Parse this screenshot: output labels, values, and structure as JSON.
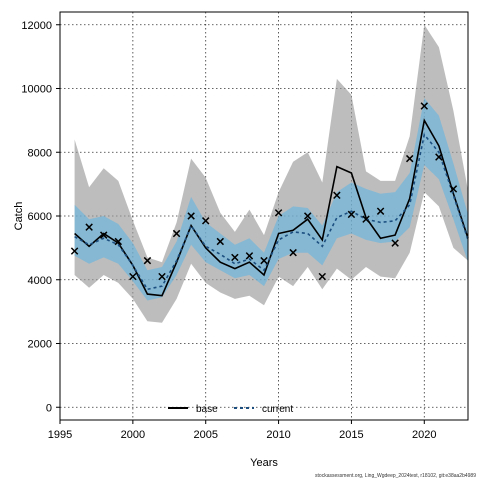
{
  "chart_data": {
    "type": "line",
    "title": "",
    "xlabel": "Years",
    "ylabel": "Catch",
    "xlim": [
      1995,
      2023
    ],
    "ylim": [
      -400,
      12400
    ],
    "x_ticks": [
      1995,
      2000,
      2005,
      2010,
      2015,
      2020
    ],
    "y_ticks": [
      0,
      2000,
      4000,
      6000,
      8000,
      10000,
      12000
    ],
    "grid": true,
    "legend_position": "bottom-center",
    "years": [
      1996,
      1997,
      1998,
      1999,
      2000,
      2001,
      2002,
      2003,
      2004,
      2005,
      2006,
      2007,
      2008,
      2009,
      2010,
      2011,
      2012,
      2013,
      2014,
      2015,
      2016,
      2017,
      2018,
      2019,
      2020,
      2021,
      2022,
      2023
    ],
    "series": [
      {
        "name": "base",
        "color": "#000000",
        "line_style": "solid",
        "band_color": "#999999",
        "values": [
          5450,
          5050,
          5450,
          5150,
          4450,
          3550,
          3500,
          4550,
          5700,
          5000,
          4550,
          4350,
          4550,
          4150,
          5450,
          5550,
          5900,
          5250,
          7550,
          7350,
          5950,
          5300,
          5400,
          6550,
          9000,
          8200,
          6700,
          5300
        ],
        "lower": [
          4150,
          3750,
          4150,
          3900,
          3400,
          2700,
          2650,
          3400,
          4500,
          3900,
          3600,
          3400,
          3500,
          3200,
          4100,
          3800,
          4400,
          3700,
          4350,
          4000,
          4400,
          4100,
          4050,
          4850,
          6750,
          6300,
          5000,
          4600
        ],
        "upper": [
          8400,
          6900,
          7500,
          7100,
          5850,
          4700,
          4550,
          5800,
          7800,
          7200,
          6100,
          5500,
          6200,
          5400,
          6750,
          7700,
          8000,
          7050,
          10300,
          9800,
          7400,
          7100,
          7100,
          8500,
          12000,
          11300,
          9300,
          6800
        ]
      },
      {
        "name": "current",
        "color": "#1c4f80",
        "line_style": "dashed",
        "band_color": "#5ab4e5",
        "values": [
          5350,
          5100,
          5300,
          5100,
          4450,
          3700,
          3800,
          4600,
          5700,
          5050,
          4800,
          4500,
          4650,
          4300,
          5250,
          5500,
          5450,
          5050,
          5950,
          6150,
          5900,
          5800,
          5850,
          6350,
          8550,
          8000,
          6650,
          5250
        ],
        "lower": [
          4750,
          4500,
          4700,
          4500,
          3950,
          3350,
          3450,
          4150,
          5100,
          4550,
          4300,
          4050,
          4150,
          3800,
          4650,
          4850,
          4850,
          4450,
          5300,
          5450,
          5250,
          5150,
          5200,
          5650,
          7600,
          7150,
          5900,
          4550
        ],
        "upper": [
          6350,
          5900,
          6000,
          5750,
          5150,
          4300,
          4400,
          5200,
          6600,
          5800,
          5450,
          5100,
          5300,
          4850,
          6000,
          6300,
          6250,
          5700,
          6750,
          7050,
          6850,
          6700,
          6750,
          7350,
          9700,
          9150,
          7650,
          6050
        ]
      }
    ],
    "observed": {
      "marker": "x",
      "x": [
        1996,
        1997,
        1998,
        1999,
        2000,
        2001,
        2002,
        2003,
        2004,
        2005,
        2006,
        2007,
        2008,
        2009,
        2010,
        2011,
        2012,
        2013,
        2014,
        2015,
        2016,
        2017,
        2018,
        2019,
        2020,
        2021,
        2022
      ],
      "y": [
        4900,
        5650,
        5400,
        5200,
        4100,
        4600,
        4100,
        5450,
        6000,
        5850,
        5200,
        4700,
        4750,
        4600,
        6100,
        4850,
        6000,
        4100,
        6650,
        6050,
        5900,
        6150,
        5150,
        7800,
        9450,
        7850,
        6850
      ]
    },
    "footnote": "stockassessment.org, Ling_Wgdeep_2024test, r18102, git:e38aa2b4989"
  }
}
